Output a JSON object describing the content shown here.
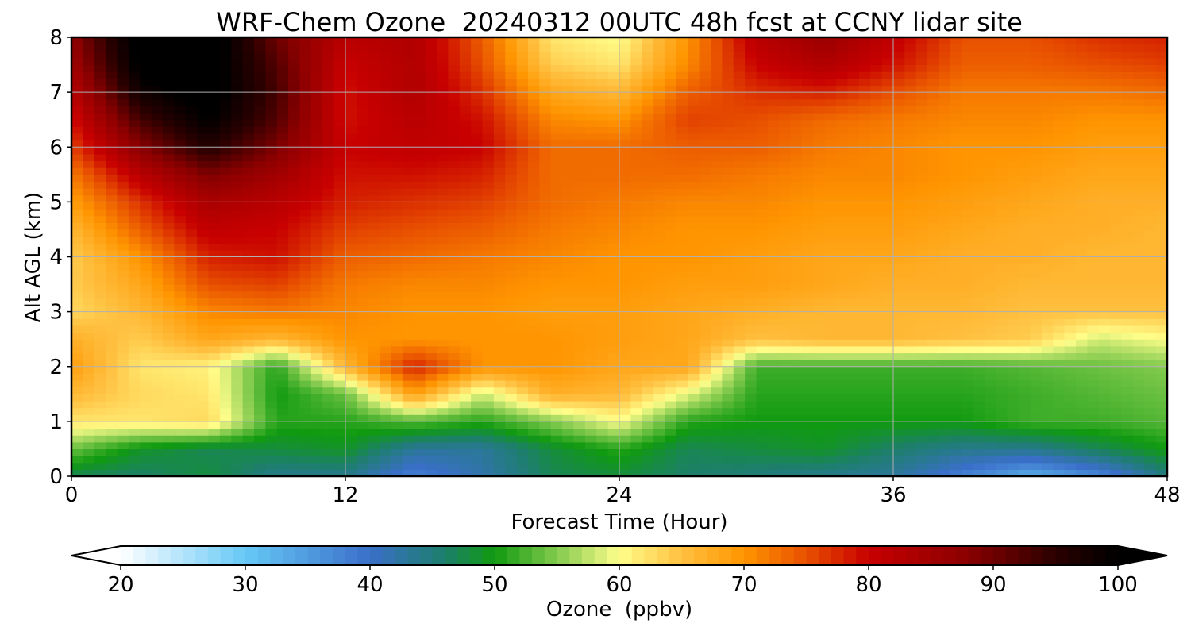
{
  "chart_data": {
    "type": "heatmap",
    "title": "WRF-Chem Ozone  20240312 00UTC 48h fcst at CCNY lidar site",
    "xlabel": "Forecast Time (Hour)",
    "ylabel": "Alt AGL (km)",
    "xlim": [
      0,
      48
    ],
    "ylim": [
      0,
      8
    ],
    "x_ticks": [
      0,
      12,
      24,
      36,
      48
    ],
    "y_ticks": [
      0,
      1,
      2,
      3,
      4,
      5,
      6,
      7,
      8
    ],
    "grid": true,
    "x": [
      0,
      3,
      6,
      9,
      12,
      15,
      18,
      21,
      24,
      27,
      30,
      33,
      36,
      39,
      42,
      45,
      48
    ],
    "y": [
      0,
      0.5,
      1,
      1.5,
      2,
      2.5,
      3,
      3.5,
      4,
      4.5,
      5,
      5.5,
      6,
      6.5,
      7,
      7.5,
      8
    ],
    "values": [
      [
        47,
        46,
        48,
        44,
        44,
        38,
        42,
        47,
        48,
        46,
        45,
        44,
        43,
        38,
        33,
        37,
        45
      ],
      [
        54,
        49,
        47,
        48,
        49,
        43,
        43,
        48,
        51,
        47,
        48,
        49,
        46,
        44,
        44,
        47,
        50
      ],
      [
        62,
        62,
        63,
        51,
        51,
        53,
        51,
        55,
        60,
        51,
        50,
        50,
        50,
        50,
        52,
        52,
        53
      ],
      [
        66,
        63,
        62,
        50,
        54,
        69,
        58,
        67,
        66,
        59,
        51,
        51,
        51,
        51,
        52,
        53,
        54
      ],
      [
        69,
        62,
        61,
        51,
        66,
        78,
        70,
        70,
        68,
        68,
        52,
        52,
        52,
        52,
        53,
        54,
        55
      ],
      [
        67,
        64,
        68,
        66,
        70,
        70,
        70,
        70,
        69,
        68,
        65,
        66,
        66,
        65,
        64,
        58,
        60
      ],
      [
        63,
        66,
        71,
        72,
        71,
        70,
        70,
        69,
        69,
        68,
        67,
        66,
        66,
        66,
        65,
        65,
        65
      ],
      [
        64,
        68,
        75,
        76,
        72,
        71,
        71,
        70,
        70,
        69,
        69,
        68,
        67,
        67,
        66,
        66,
        66
      ],
      [
        64,
        70,
        78,
        79,
        74,
        73,
        72,
        71,
        70,
        70,
        69,
        68,
        68,
        67,
        67,
        66,
        66
      ],
      [
        66,
        74,
        81,
        80,
        76,
        75,
        74,
        72,
        71,
        70,
        70,
        69,
        69,
        68,
        67,
        67,
        66
      ],
      [
        69,
        77,
        84,
        82,
        78,
        77,
        76,
        73,
        72,
        71,
        71,
        70,
        70,
        69,
        68,
        67,
        67
      ],
      [
        72,
        82,
        89,
        85,
        79,
        79,
        78,
        73,
        73,
        73,
        72,
        71,
        71,
        70,
        69,
        68,
        68
      ],
      [
        76,
        88,
        96,
        89,
        80,
        81,
        80,
        73,
        73,
        74,
        74,
        72,
        71,
        70,
        70,
        69,
        69
      ],
      [
        79,
        93,
        100,
        92,
        79,
        82,
        79,
        71,
        70,
        76,
        75,
        73,
        72,
        71,
        71,
        70,
        70
      ],
      [
        82,
        98,
        102,
        93,
        79,
        83,
        77,
        68,
        66,
        74,
        77,
        78,
        75,
        72,
        72,
        72,
        73
      ],
      [
        85,
        101,
        102,
        92,
        80,
        83,
        75,
        64,
        62,
        71,
        80,
        83,
        79,
        74,
        74,
        75,
        76
      ],
      [
        87,
        102,
        103,
        90,
        82,
        83,
        74,
        62,
        60,
        70,
        82,
        86,
        81,
        75,
        75,
        77,
        78
      ]
    ],
    "colorbar": {
      "label": "Ozone  (ppbv)",
      "min": 20,
      "max": 100,
      "ticks": [
        20,
        30,
        40,
        50,
        60,
        70,
        80,
        90,
        100
      ],
      "extend": "both",
      "orientation": "horizontal",
      "placement": "bottom",
      "stops": [
        {
          "v": 20,
          "c": "#ffffff"
        },
        {
          "v": 30,
          "c": "#66c8f5"
        },
        {
          "v": 40,
          "c": "#3a6fc9"
        },
        {
          "v": 46,
          "c": "#1d7f6b"
        },
        {
          "v": 50,
          "c": "#109a10"
        },
        {
          "v": 56,
          "c": "#9ad45a"
        },
        {
          "v": 60,
          "c": "#fffe8a"
        },
        {
          "v": 65,
          "c": "#ffc040"
        },
        {
          "v": 70,
          "c": "#ff9500"
        },
        {
          "v": 75,
          "c": "#e85000"
        },
        {
          "v": 80,
          "c": "#c80000"
        },
        {
          "v": 88,
          "c": "#8a0000"
        },
        {
          "v": 95,
          "c": "#2a0000"
        },
        {
          "v": 100,
          "c": "#000000"
        }
      ]
    }
  }
}
